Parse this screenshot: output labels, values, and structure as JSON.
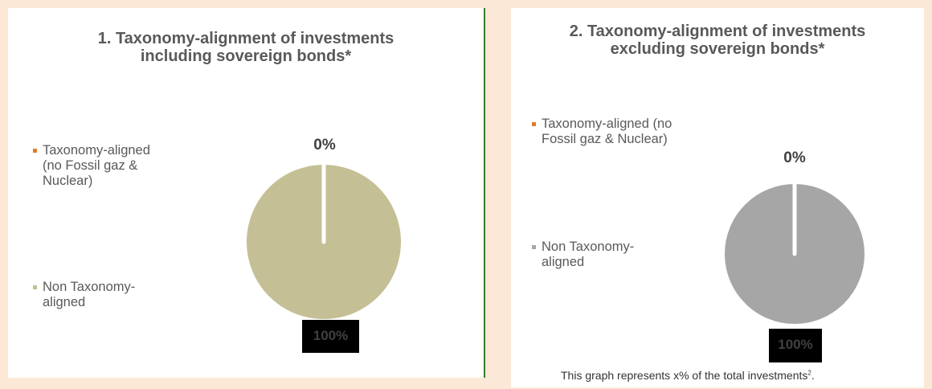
{
  "chart_data": [
    {
      "type": "pie",
      "title": "1. Taxonomy-alignment of investments including sovereign bonds*",
      "title_lines": [
        "1. Taxonomy-alignment of investments",
        "including sovereign bonds*"
      ],
      "legend_position": "left",
      "series": [
        {
          "name": "Taxonomy-aligned (no Fossil gaz & Nuclear)",
          "value": 0,
          "label": "0%",
          "color": "#e07b28"
        },
        {
          "name": "Non Taxonomy-aligned",
          "value": 100,
          "label": "100%",
          "color": "#c5bf95"
        }
      ]
    },
    {
      "type": "pie",
      "title": "2. Taxonomy-alignment of investments excluding sovereign bonds*",
      "title_lines": [
        "2. Taxonomy-alignment of investments",
        "excluding sovereign bonds*"
      ],
      "legend_position": "left",
      "series": [
        {
          "name": "Taxonomy-aligned (no Fossil gaz & Nuclear)",
          "value": 0,
          "label": "0%",
          "color": "#e07b28"
        },
        {
          "name": "Non Taxonomy-aligned",
          "value": 100,
          "label": "100%",
          "color": "#a6a6a6"
        }
      ]
    }
  ],
  "panel1": {
    "legend_lines": [
      [
        "Taxonomy-aligned",
        "(no Fossil gaz &",
        "Nuclear)"
      ],
      [
        "Non Taxonomy-",
        "aligned"
      ]
    ]
  },
  "panel2": {
    "legend_lines": [
      [
        "Taxonomy-aligned (no",
        "Fossil gaz & Nuclear)"
      ],
      [
        "Non Taxonomy-",
        "aligned"
      ]
    ],
    "footnote": "This graph represents x% of the total investments",
    "footnote_sup": "2",
    "footnote_end": "."
  }
}
